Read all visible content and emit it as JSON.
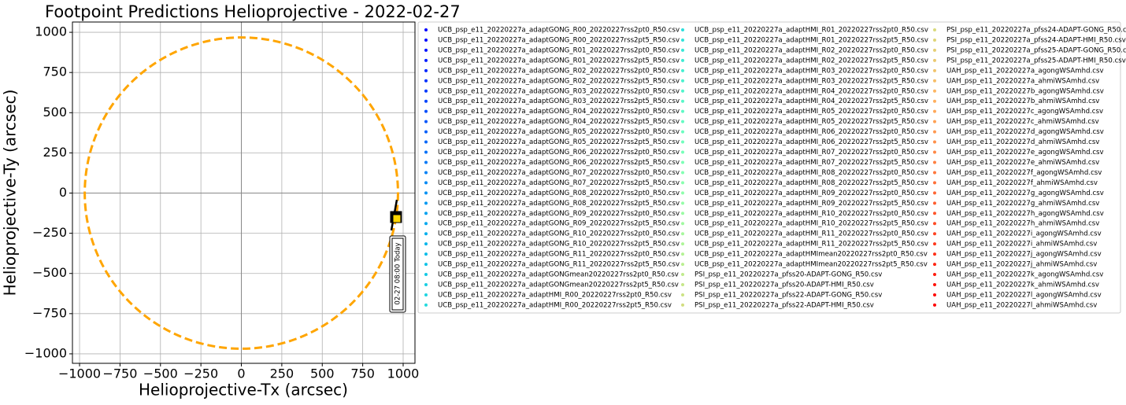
{
  "chart_data": {
    "type": "scatter",
    "title": "Footpoint Predictions Helioprojective - 2022-02-27",
    "x_label": "Helioprojective-Tx (arcsec)",
    "y_label": "Helioprojective-Ty (arcsec)",
    "xlim": [
      -1044,
      1073
    ],
    "ylim": [
      -1059,
      1064
    ],
    "xticks": [
      {
        "value": -1000,
        "label": "−1000"
      },
      {
        "value": -750,
        "label": "−750"
      },
      {
        "value": -500,
        "label": "−500"
      },
      {
        "value": -250,
        "label": "−250"
      },
      0,
      250,
      500,
      750,
      1000
    ],
    "yticks": [
      {
        "value": -1000,
        "label": "−1000"
      },
      {
        "value": -750,
        "label": "−750"
      },
      {
        "value": -500,
        "label": "−500"
      },
      {
        "value": -250,
        "label": "−250"
      },
      0,
      250,
      500,
      750,
      1000
    ],
    "grid": true,
    "limb": {
      "radius": 968,
      "color": "orange"
    },
    "track": {
      "x": [
        961,
        927
      ],
      "y": [
        -42,
        -232
      ],
      "color": "black"
    },
    "footpoints": {
      "x": [
        956,
        961
      ],
      "y": [
        -149,
        -159
      ],
      "colors": [
        "black",
        "gold"
      ]
    },
    "annotation": "02-27 08:00 Today",
    "colormap": "rainbow",
    "legend_columns": 3,
    "series": [
      {
        "name": "UCB_psp_e11_20220227a_adaptGONG_R00_20220227rss2pt0_R50.csv"
      },
      {
        "name": "UCB_psp_e11_20220227a_adaptGONG_R00_20220227rss2pt5_R50.csv"
      },
      {
        "name": "UCB_psp_e11_20220227a_adaptGONG_R01_20220227rss2pt0_R50.csv"
      },
      {
        "name": "UCB_psp_e11_20220227a_adaptGONG_R01_20220227rss2pt5_R50.csv"
      },
      {
        "name": "UCB_psp_e11_20220227a_adaptGONG_R02_20220227rss2pt0_R50.csv"
      },
      {
        "name": "UCB_psp_e11_20220227a_adaptGONG_R02_20220227rss2pt5_R50.csv"
      },
      {
        "name": "UCB_psp_e11_20220227a_adaptGONG_R03_20220227rss2pt0_R50.csv"
      },
      {
        "name": "UCB_psp_e11_20220227a_adaptGONG_R03_20220227rss2pt5_R50.csv"
      },
      {
        "name": "UCB_psp_e11_20220227a_adaptGONG_R04_20220227rss2pt0_R50.csv"
      },
      {
        "name": "UCB_psp_e11_20220227a_adaptGONG_R04_20220227rss2pt5_R50.csv"
      },
      {
        "name": "UCB_psp_e11_20220227a_adaptGONG_R05_20220227rss2pt0_R50.csv"
      },
      {
        "name": "UCB_psp_e11_20220227a_adaptGONG_R05_20220227rss2pt5_R50.csv"
      },
      {
        "name": "UCB_psp_e11_20220227a_adaptGONG_R06_20220227rss2pt0_R50.csv"
      },
      {
        "name": "UCB_psp_e11_20220227a_adaptGONG_R06_20220227rss2pt5_R50.csv"
      },
      {
        "name": "UCB_psp_e11_20220227a_adaptGONG_R07_20220227rss2pt0_R50.csv"
      },
      {
        "name": "UCB_psp_e11_20220227a_adaptGONG_R07_20220227rss2pt5_R50.csv"
      },
      {
        "name": "UCB_psp_e11_20220227a_adaptGONG_R08_20220227rss2pt0_R50.csv"
      },
      {
        "name": "UCB_psp_e11_20220227a_adaptGONG_R08_20220227rss2pt5_R50.csv"
      },
      {
        "name": "UCB_psp_e11_20220227a_adaptGONG_R09_20220227rss2pt0_R50.csv"
      },
      {
        "name": "UCB_psp_e11_20220227a_adaptGONG_R09_20220227rss2pt5_R50.csv"
      },
      {
        "name": "UCB_psp_e11_20220227a_adaptGONG_R10_20220227rss2pt0_R50.csv"
      },
      {
        "name": "UCB_psp_e11_20220227a_adaptGONG_R10_20220227rss2pt5_R50.csv"
      },
      {
        "name": "UCB_psp_e11_20220227a_adaptGONG_R11_20220227rss2pt0_R50.csv"
      },
      {
        "name": "UCB_psp_e11_20220227a_adaptGONG_R11_20220227rss2pt5_R50.csv"
      },
      {
        "name": "UCB_psp_e11_20220227a_adaptGONGmean20220227rss2pt0_R50.csv"
      },
      {
        "name": "UCB_psp_e11_20220227a_adaptGONGmean20220227rss2pt5_R50.csv"
      },
      {
        "name": "UCB_psp_e11_20220227a_adaptHMI_R00_20220227rss2pt0_R50.csv"
      },
      {
        "name": "UCB_psp_e11_20220227a_adaptHMI_R00_20220227rss2pt5_R50.csv"
      },
      {
        "name": "UCB_psp_e11_20220227a_adaptHMI_R01_20220227rss2pt0_R50.csv"
      },
      {
        "name": "UCB_psp_e11_20220227a_adaptHMI_R01_20220227rss2pt5_R50.csv"
      },
      {
        "name": "UCB_psp_e11_20220227a_adaptHMI_R02_20220227rss2pt0_R50.csv"
      },
      {
        "name": "UCB_psp_e11_20220227a_adaptHMI_R02_20220227rss2pt5_R50.csv"
      },
      {
        "name": "UCB_psp_e11_20220227a_adaptHMI_R03_20220227rss2pt0_R50.csv"
      },
      {
        "name": "UCB_psp_e11_20220227a_adaptHMI_R03_20220227rss2pt5_R50.csv"
      },
      {
        "name": "UCB_psp_e11_20220227a_adaptHMI_R04_20220227rss2pt0_R50.csv"
      },
      {
        "name": "UCB_psp_e11_20220227a_adaptHMI_R04_20220227rss2pt5_R50.csv"
      },
      {
        "name": "UCB_psp_e11_20220227a_adaptHMI_R05_20220227rss2pt0_R50.csv"
      },
      {
        "name": "UCB_psp_e11_20220227a_adaptHMI_R05_20220227rss2pt5_R50.csv"
      },
      {
        "name": "UCB_psp_e11_20220227a_adaptHMI_R06_20220227rss2pt0_R50.csv"
      },
      {
        "name": "UCB_psp_e11_20220227a_adaptHMI_R06_20220227rss2pt5_R50.csv"
      },
      {
        "name": "UCB_psp_e11_20220227a_adaptHMI_R07_20220227rss2pt0_R50.csv"
      },
      {
        "name": "UCB_psp_e11_20220227a_adaptHMI_R07_20220227rss2pt5_R50.csv"
      },
      {
        "name": "UCB_psp_e11_20220227a_adaptHMI_R08_20220227rss2pt0_R50.csv"
      },
      {
        "name": "UCB_psp_e11_20220227a_adaptHMI_R08_20220227rss2pt5_R50.csv"
      },
      {
        "name": "UCB_psp_e11_20220227a_adaptHMI_R09_20220227rss2pt0_R50.csv"
      },
      {
        "name": "UCB_psp_e11_20220227a_adaptHMI_R09_20220227rss2pt5_R50.csv"
      },
      {
        "name": "UCB_psp_e11_20220227a_adaptHMI_R10_20220227rss2pt0_R50.csv"
      },
      {
        "name": "UCB_psp_e11_20220227a_adaptHMI_R10_20220227rss2pt5_R50.csv"
      },
      {
        "name": "UCB_psp_e11_20220227a_adaptHMI_R11_20220227rss2pt0_R50.csv"
      },
      {
        "name": "UCB_psp_e11_20220227a_adaptHMI_R11_20220227rss2pt5_R50.csv"
      },
      {
        "name": "UCB_psp_e11_20220227a_adaptHMImean20220227rss2pt0_R50.csv"
      },
      {
        "name": "UCB_psp_e11_20220227a_adaptHMImean20220227rss2pt5_R50.csv"
      },
      {
        "name": "PSI_psp_e11_20220227a_pfss20-ADAPT-GONG_R50.csv"
      },
      {
        "name": "PSI_psp_e11_20220227a_pfss20-ADAPT-HMI_R50.csv"
      },
      {
        "name": "PSI_psp_e11_20220227a_pfss22-ADAPT-GONG_R50.csv"
      },
      {
        "name": "PSI_psp_e11_20220227a_pfss22-ADAPT-HMI_R50.csv"
      },
      {
        "name": "PSI_psp_e11_20220227a_pfss24-ADAPT-GONG_R50.csv"
      },
      {
        "name": "PSI_psp_e11_20220227a_pfss24-ADAPT-HMI_R50.csv"
      },
      {
        "name": "PSI_psp_e11_20220227a_pfss25-ADAPT-GONG_R50.csv"
      },
      {
        "name": "PSI_psp_e11_20220227a_pfss25-ADAPT-HMI_R50.csv"
      },
      {
        "name": "UAH_psp_e11_20220227a_agongWSAmhd.csv"
      },
      {
        "name": "UAH_psp_e11_20220227a_ahmiWSAmhd.csv"
      },
      {
        "name": "UAH_psp_e11_20220227b_agongWSAmhd.csv"
      },
      {
        "name": "UAH_psp_e11_20220227b_ahmiWSAmhd.csv"
      },
      {
        "name": "UAH_psp_e11_20220227c_agongWSAmhd.csv"
      },
      {
        "name": "UAH_psp_e11_20220227c_ahmiWSAmhd.csv"
      },
      {
        "name": "UAH_psp_e11_20220227d_agongWSAmhd.csv"
      },
      {
        "name": "UAH_psp_e11_20220227d_ahmiWSAmhd.csv"
      },
      {
        "name": "UAH_psp_e11_20220227e_agongWSAmhd.csv"
      },
      {
        "name": "UAH_psp_e11_20220227e_ahmiWSAmhd.csv"
      },
      {
        "name": "UAH_psp_e11_20220227f_agongWSAmhd.csv"
      },
      {
        "name": "UAH_psp_e11_20220227f_ahmiWSAmhd.csv"
      },
      {
        "name": "UAH_psp_e11_20220227g_agongWSAmhd.csv"
      },
      {
        "name": "UAH_psp_e11_20220227g_ahmiWSAmhd.csv"
      },
      {
        "name": "UAH_psp_e11_20220227h_agongWSAmhd.csv"
      },
      {
        "name": "UAH_psp_e11_20220227h_ahmiWSAmhd.csv"
      },
      {
        "name": "UAH_psp_e11_20220227i_agongWSAmhd.csv"
      },
      {
        "name": "UAH_psp_e11_20220227i_ahmiWSAmhd.csv"
      },
      {
        "name": "UAH_psp_e11_20220227j_agongWSAmhd.csv"
      },
      {
        "name": "UAH_psp_e11_20220227j_ahmiWSAmhd.csv"
      },
      {
        "name": "UAH_psp_e11_20220227k_agongWSAmhd.csv"
      },
      {
        "name": "UAH_psp_e11_20220227k_ahmiWSAmhd.csv"
      },
      {
        "name": "UAH_psp_e11_20220227l_agongWSAmhd.csv"
      },
      {
        "name": "UAH_psp_e11_20220227l_ahmiWSAmhd.csv"
      }
    ]
  }
}
